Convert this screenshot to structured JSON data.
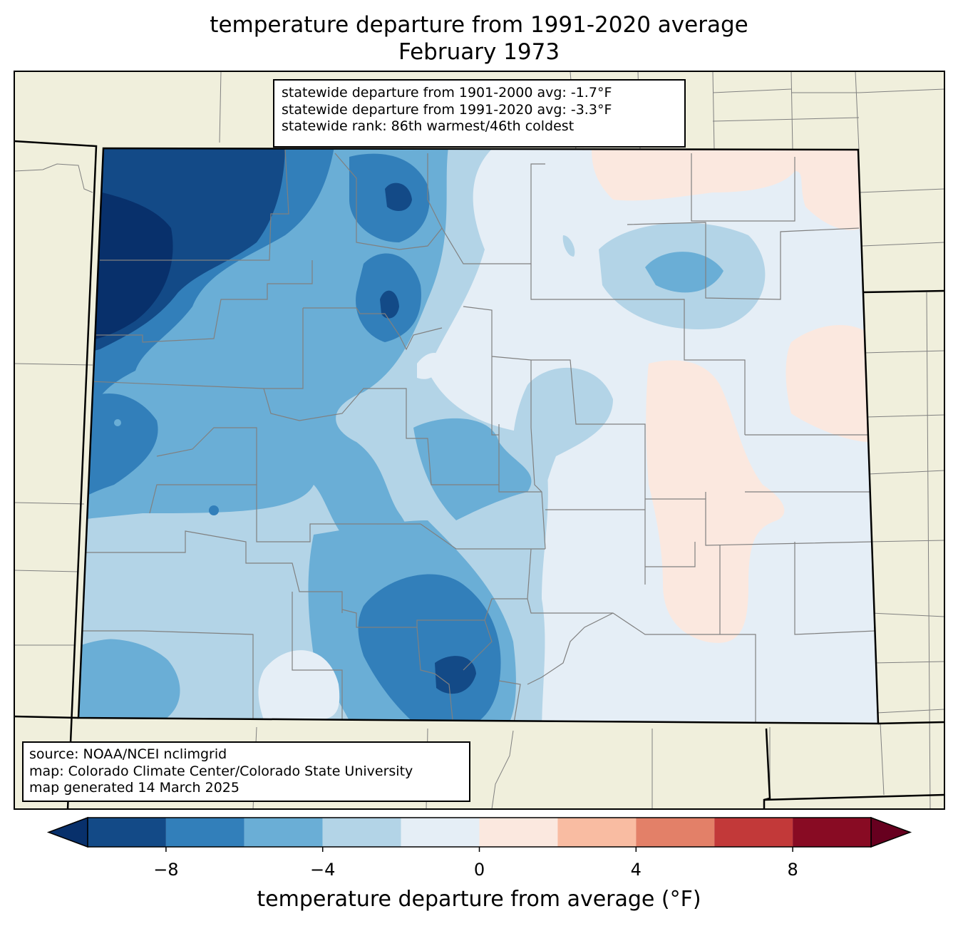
{
  "title": {
    "line1": "temperature departure from 1991-2020 average",
    "line2": "February 1973"
  },
  "stats_box": {
    "line1": "statewide departure from 1901-2000 avg: -1.7°F",
    "line2": "statewide departure from 1991-2020 avg: -3.3°F",
    "line3": "statewide rank: 86th warmest/46th coldest"
  },
  "source_box": {
    "line1": "source: NOAA/NCEI nclimgrid",
    "line2": "map: Colorado Climate Center/Colorado State University",
    "line3": "map generated 14 March 2025"
  },
  "colorbar": {
    "label": "temperature departure from average (°F)",
    "ticks": [
      {
        "value": -8,
        "label": "−8"
      },
      {
        "value": -4,
        "label": "−4"
      },
      {
        "value": 0,
        "label": "0"
      },
      {
        "value": 4,
        "label": "4"
      },
      {
        "value": 8,
        "label": "8"
      }
    ],
    "range": [
      -10,
      10
    ],
    "bin_width": 2,
    "colors": [
      "#08306b",
      "#134a87",
      "#327fba",
      "#6aaed6",
      "#b3d4e7",
      "#e5eef6",
      "#fbe8df",
      "#f9bca2",
      "#e38068",
      "#c23939",
      "#880b23",
      "#67001f"
    ]
  },
  "map_colors": {
    "land": "#f0efdc",
    "county_lines": "#808080",
    "state_lines": "#000000"
  }
}
